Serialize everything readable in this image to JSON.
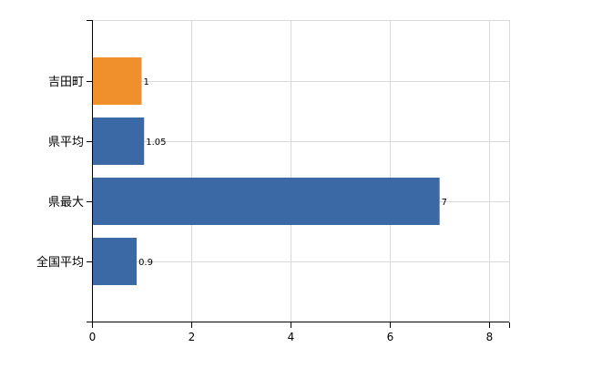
{
  "chart_data": {
    "type": "bar",
    "orientation": "horizontal",
    "categories": [
      "吉田町",
      "県平均",
      "県最大",
      "全国平均"
    ],
    "values": [
      1,
      1.05,
      7,
      0.9
    ],
    "data_labels": [
      "1",
      "1.05",
      "7",
      "0.9"
    ],
    "bar_colors": [
      "#f0902d",
      "#3a69a6",
      "#3a69a6",
      "#3a69a6"
    ],
    "xlim": [
      0,
      8.4
    ],
    "x_ticks": [
      0,
      2,
      4,
      6,
      8
    ],
    "x_tick_labels": [
      "0",
      "2",
      "4",
      "6",
      "8"
    ],
    "grid": true,
    "legend": "none",
    "title": "",
    "xlabel": "",
    "ylabel": ""
  }
}
